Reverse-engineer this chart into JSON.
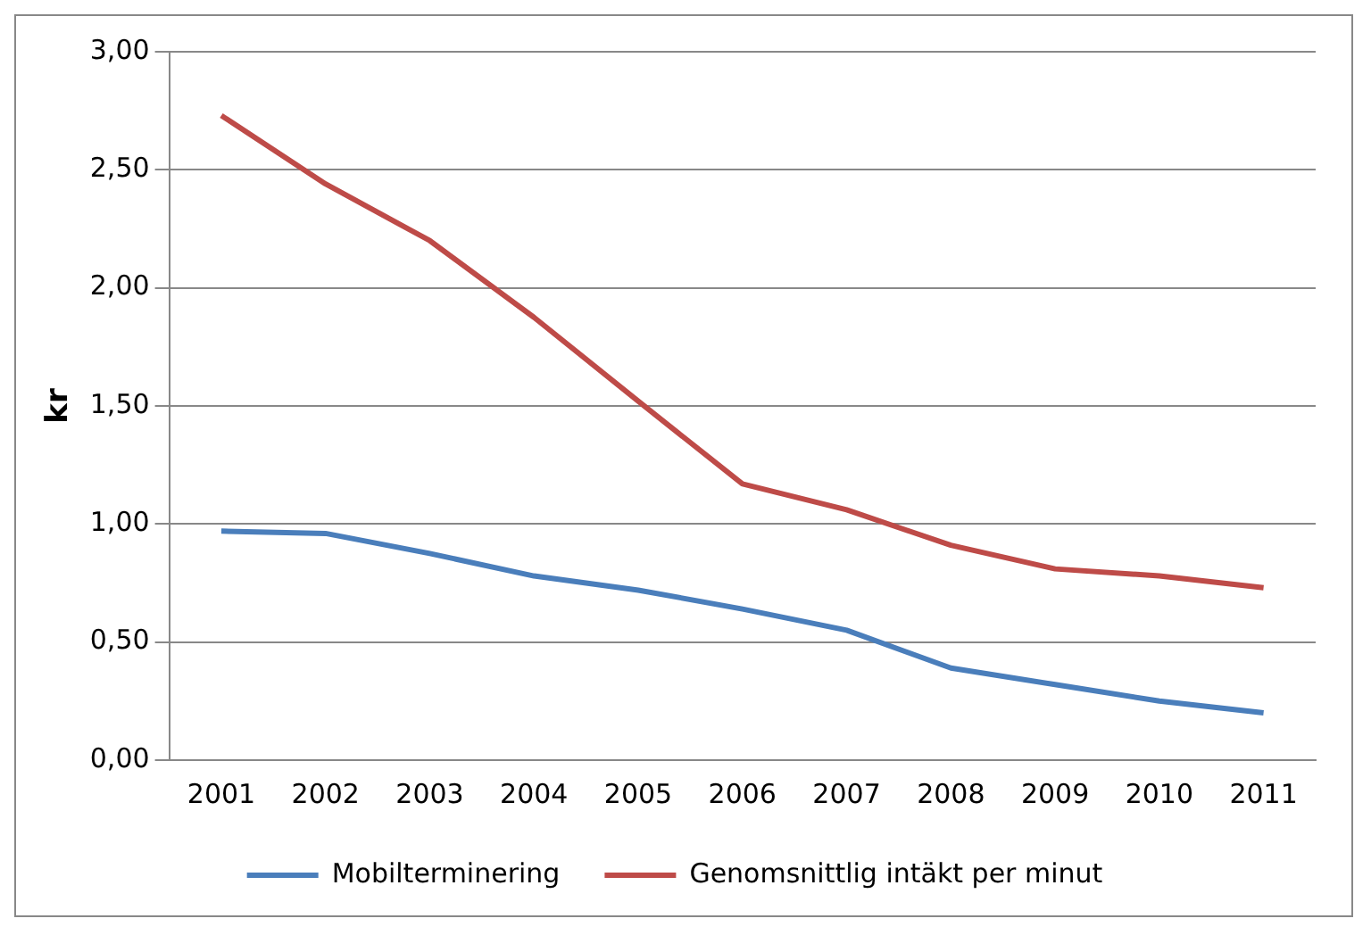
{
  "chart_data": {
    "type": "line",
    "ylabel": "kr",
    "categories": [
      "2001",
      "2002",
      "2003",
      "2004",
      "2005",
      "2006",
      "2007",
      "2008",
      "2009",
      "2010",
      "2011"
    ],
    "series": [
      {
        "name": "Mobilterminering",
        "color": "#4a7ebb",
        "values": [
          0.97,
          0.96,
          0.875,
          0.78,
          0.72,
          0.64,
          0.55,
          0.39,
          0.32,
          0.25,
          0.2
        ]
      },
      {
        "name": "Genomsnittlig intäkt per minut",
        "color": "#be4b48",
        "values": [
          2.73,
          2.44,
          2.2,
          1.875,
          1.52,
          1.17,
          1.06,
          0.91,
          0.81,
          0.78,
          0.73
        ]
      }
    ],
    "ylim": [
      0,
      3
    ],
    "yticks": [
      {
        "value": 0,
        "label": "0,00"
      },
      {
        "value": 0.5,
        "label": "0,50"
      },
      {
        "value": 1,
        "label": "1,00"
      },
      {
        "value": 1.5,
        "label": "1,50"
      },
      {
        "value": 2,
        "label": "2,00"
      },
      {
        "value": 2.5,
        "label": "2,50"
      },
      {
        "value": 3,
        "label": "3,00"
      }
    ],
    "grid": "y",
    "legend": "bottom",
    "marker": "none",
    "line_style": "solid"
  }
}
